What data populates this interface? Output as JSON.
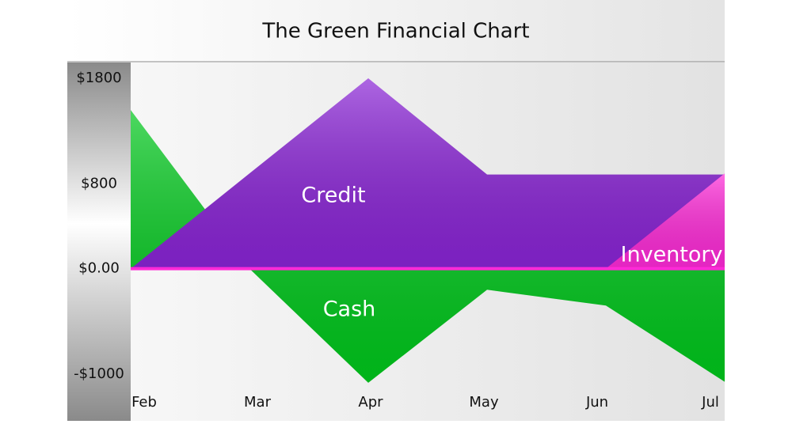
{
  "chart_data": {
    "type": "area",
    "title": "The Green Financial Chart",
    "categories": [
      "Feb",
      "Mar",
      "Apr",
      "May",
      "Jun",
      "Jul"
    ],
    "series": [
      {
        "name": "Cash",
        "color": "#00c81c",
        "values": [
          1500,
          0,
          -1080,
          -200,
          -350,
          -1070
        ]
      },
      {
        "name": "Credit",
        "color": "#8a24d6",
        "values": [
          0,
          900,
          1800,
          890,
          890,
          890
        ]
      },
      {
        "name": "Inventory",
        "color": "#ff2ad8",
        "values": [
          0,
          0,
          0,
          0,
          0,
          900
        ]
      }
    ],
    "ylim": [
      -1440,
      1950
    ],
    "yticks": [
      {
        "value": 1800,
        "label": "$1800"
      },
      {
        "value": 800,
        "label": "$800"
      },
      {
        "value": 0,
        "label": "$0.00"
      },
      {
        "value": -1000,
        "label": "-$1000"
      }
    ]
  }
}
